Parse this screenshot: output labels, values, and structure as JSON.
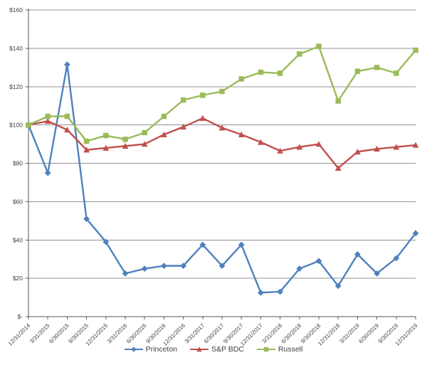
{
  "chart_data": {
    "type": "line",
    "title": "",
    "xlabel": "",
    "ylabel": "",
    "ylim": [
      0,
      160
    ],
    "grid": true,
    "legend_position": "bottom-center",
    "axis_color": "#5a5a5a",
    "grid_color": "#919191",
    "text_color": "#3d3d3d",
    "background_color": "#ffffff",
    "categories": [
      "12/31/2014",
      "3/31/2015",
      "6/30/2015",
      "9/30/2015",
      "12/31/2015",
      "3/31/2016",
      "6/30/2016",
      "9/30/2016",
      "12/31/2016",
      "3/31/2017",
      "6/30/2017",
      "9/30/2017",
      "12/31/2017",
      "3/31/2018",
      "6/30/2018",
      "9/30/2018",
      "12/31/2018",
      "3/31/2019",
      "6/30/2019",
      "9/30/2019",
      "12/31/2019"
    ],
    "yticks": [
      {
        "label": "$-",
        "value": 0
      },
      {
        "label": "$20",
        "value": 20
      },
      {
        "label": "$40",
        "value": 40
      },
      {
        "label": "$60",
        "value": 60
      },
      {
        "label": "$80",
        "value": 80
      },
      {
        "label": "$100",
        "value": 100
      },
      {
        "label": "$120",
        "value": 120
      },
      {
        "label": "$140",
        "value": 140
      },
      {
        "label": "$160",
        "value": 160
      }
    ],
    "series": [
      {
        "name": "Princeton",
        "color": "#4F81BD",
        "marker": "diamond",
        "values": [
          100,
          75,
          131.5,
          51,
          39,
          22.5,
          25,
          26.5,
          26.5,
          37.5,
          26.5,
          37.5,
          12.5,
          13,
          25,
          29,
          16,
          32.5,
          22.5,
          30.5,
          43.5
        ]
      },
      {
        "name": "S&P BDC",
        "color": "#C0504D",
        "marker": "triangle",
        "values": [
          100,
          102,
          97.5,
          87,
          88,
          89,
          90,
          95,
          99,
          103.5,
          98.5,
          95,
          91,
          86.5,
          88.5,
          90,
          77.5,
          86,
          87.5,
          88.5,
          89.5
        ]
      },
      {
        "name": "Russell",
        "color": "#9BBB59",
        "marker": "square",
        "values": [
          100,
          104.5,
          104.5,
          91.5,
          94.5,
          92.5,
          96,
          104.5,
          113,
          115.5,
          117.5,
          124,
          127.5,
          127,
          137,
          141,
          112.5,
          128,
          130,
          127,
          139
        ]
      }
    ]
  }
}
